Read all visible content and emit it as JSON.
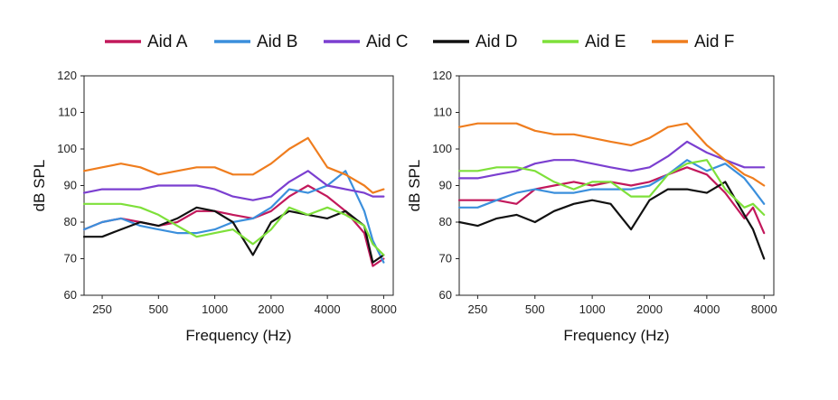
{
  "legend": [
    {
      "name": "Aid A",
      "color": "#c2185b"
    },
    {
      "name": "Aid B",
      "color": "#3b8fdc"
    },
    {
      "name": "Aid C",
      "color": "#7b3fd0"
    },
    {
      "name": "Aid D",
      "color": "#111111"
    },
    {
      "name": "Aid E",
      "color": "#7ee03a"
    },
    {
      "name": "Aid F",
      "color": "#ef7d1e"
    }
  ],
  "chart_data": [
    {
      "type": "line",
      "xlabel": "Frequency (Hz)",
      "ylabel": "dB SPL",
      "xscale": "log",
      "xlim": [
        200,
        9000
      ],
      "ylim": [
        60,
        120
      ],
      "xticks": [
        "250",
        "500",
        "1000",
        "2000",
        "4000",
        "8000"
      ],
      "xtick_values": [
        250,
        500,
        1000,
        2000,
        4000,
        8000
      ],
      "yticks": [
        "60",
        "70",
        "80",
        "90",
        "100",
        "110",
        "120"
      ],
      "x": [
        200,
        250,
        315,
        400,
        500,
        630,
        800,
        1000,
        1250,
        1600,
        2000,
        2500,
        3150,
        4000,
        5000,
        6300,
        7000,
        8000
      ],
      "series": [
        {
          "name": "Aid A",
          "values": [
            78,
            80,
            81,
            80,
            79,
            80,
            83,
            83,
            82,
            81,
            83,
            87,
            90,
            87,
            83,
            77,
            68,
            70
          ]
        },
        {
          "name": "Aid B",
          "values": [
            78,
            80,
            81,
            79,
            78,
            77,
            77,
            78,
            80,
            81,
            84,
            89,
            88,
            90,
            94,
            83,
            75,
            69
          ]
        },
        {
          "name": "Aid C",
          "values": [
            88,
            89,
            89,
            89,
            90,
            90,
            90,
            89,
            87,
            86,
            87,
            91,
            94,
            90,
            89,
            88,
            87,
            87
          ]
        },
        {
          "name": "Aid D",
          "values": [
            76,
            76,
            78,
            80,
            79,
            81,
            84,
            83,
            80,
            71,
            80,
            83,
            82,
            81,
            83,
            79,
            69,
            71
          ]
        },
        {
          "name": "Aid E",
          "values": [
            85,
            85,
            85,
            84,
            82,
            79,
            76,
            77,
            78,
            74,
            78,
            84,
            82,
            84,
            82,
            79,
            74,
            71
          ]
        },
        {
          "name": "Aid F",
          "values": [
            94,
            95,
            96,
            95,
            93,
            94,
            95,
            95,
            93,
            93,
            96,
            100,
            103,
            95,
            93,
            90,
            88,
            89
          ]
        }
      ]
    },
    {
      "type": "line",
      "xlabel": "Frequency (Hz)",
      "ylabel": "dB SPL",
      "xscale": "log",
      "xlim": [
        200,
        9000
      ],
      "ylim": [
        60,
        120
      ],
      "xticks": [
        "250",
        "500",
        "1000",
        "2000",
        "4000",
        "8000"
      ],
      "xtick_values": [
        250,
        500,
        1000,
        2000,
        4000,
        8000
      ],
      "yticks": [
        "60",
        "70",
        "80",
        "90",
        "100",
        "110",
        "120"
      ],
      "x": [
        200,
        250,
        315,
        400,
        500,
        630,
        800,
        1000,
        1250,
        1600,
        2000,
        2500,
        3150,
        4000,
        5000,
        6300,
        7000,
        8000
      ],
      "series": [
        {
          "name": "Aid A",
          "values": [
            86,
            86,
            86,
            85,
            89,
            90,
            91,
            90,
            91,
            90,
            91,
            93,
            95,
            93,
            88,
            81,
            84,
            77
          ]
        },
        {
          "name": "Aid B",
          "values": [
            84,
            84,
            86,
            88,
            89,
            88,
            88,
            89,
            89,
            89,
            90,
            93,
            97,
            94,
            96,
            92,
            89,
            85
          ]
        },
        {
          "name": "Aid C",
          "values": [
            92,
            92,
            93,
            94,
            96,
            97,
            97,
            96,
            95,
            94,
            95,
            98,
            102,
            99,
            97,
            95,
            95,
            95
          ]
        },
        {
          "name": "Aid D",
          "values": [
            80,
            79,
            81,
            82,
            80,
            83,
            85,
            86,
            85,
            78,
            86,
            89,
            89,
            88,
            91,
            82,
            78,
            70
          ]
        },
        {
          "name": "Aid E",
          "values": [
            94,
            94,
            95,
            95,
            94,
            91,
            89,
            91,
            91,
            87,
            87,
            93,
            96,
            97,
            89,
            84,
            85,
            82
          ]
        },
        {
          "name": "Aid F",
          "values": [
            106,
            107,
            107,
            107,
            105,
            104,
            104,
            103,
            102,
            101,
            103,
            106,
            107,
            101,
            97,
            93,
            92,
            90
          ]
        }
      ]
    }
  ]
}
